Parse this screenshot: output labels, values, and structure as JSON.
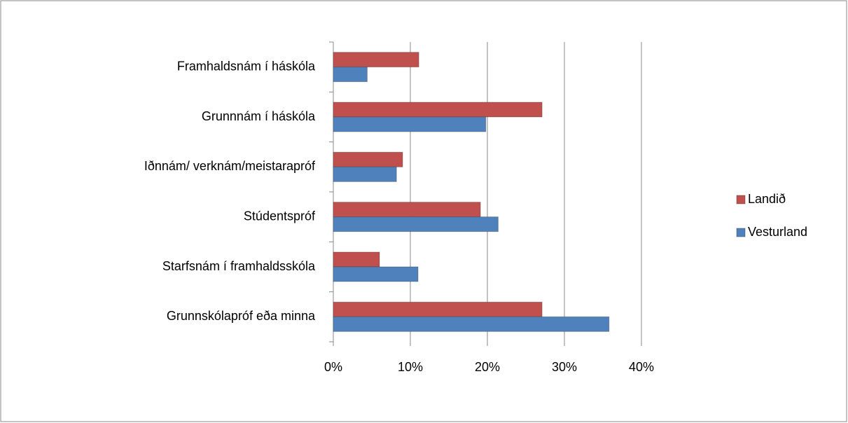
{
  "chart_data": {
    "type": "hbar",
    "categories": [
      "Framhaldsnám í háskóla",
      "Grunnnám í háskóla",
      "Iðnnám/ verknám/meistarapróf",
      "Stúdentspróf",
      "Starfsnám í framhaldsskóla",
      "Grunnskólapróf eða minna"
    ],
    "series": [
      {
        "name": "Landið",
        "color": "#c0504d",
        "values": [
          11.1,
          27.1,
          9.0,
          19.1,
          6.0,
          27.1
        ]
      },
      {
        "name": "Vesturland",
        "color": "#4f81bd",
        "values": [
          4.4,
          19.8,
          8.2,
          21.4,
          11.0,
          35.8
        ]
      }
    ],
    "xlim": [
      0,
      40
    ],
    "xticks": [
      {
        "value": 0,
        "label": "0%"
      },
      {
        "value": 10,
        "label": "10%"
      },
      {
        "value": 20,
        "label": "20%"
      },
      {
        "value": 30,
        "label": "30%"
      },
      {
        "value": 40,
        "label": "40%"
      }
    ],
    "grid": true,
    "legend": "right"
  }
}
